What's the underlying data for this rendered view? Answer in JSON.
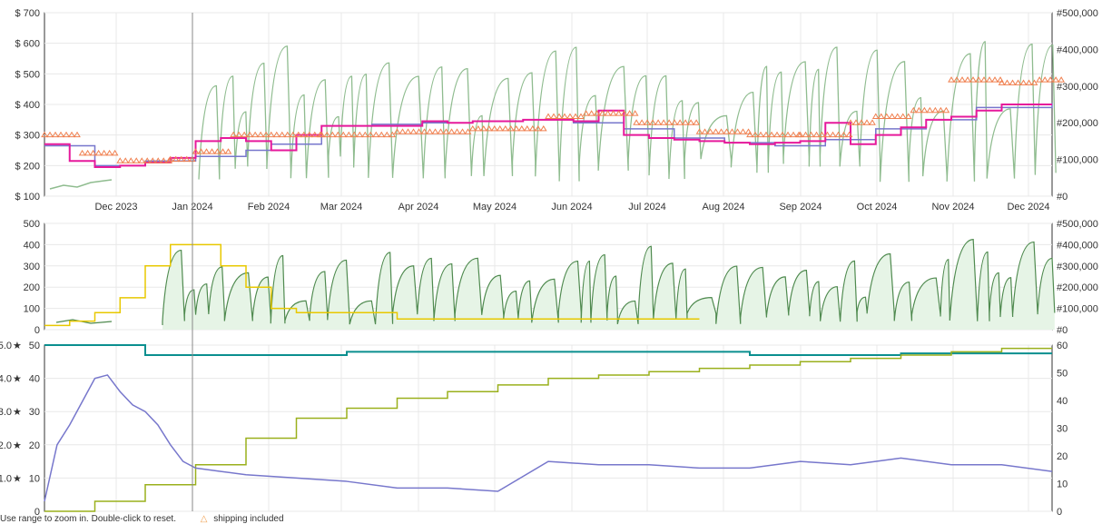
{
  "colors": {
    "amazon": "#8fbc8f",
    "new": "#e6199b",
    "used": "#7777cc",
    "shipping": "#f08050",
    "rank": "#4f8a4f",
    "offers_new": "#e8c800",
    "rating": "#0a8f8f",
    "reviews": "#9ab01c",
    "offer_count": "#7777cc"
  },
  "footer": {
    "hint": "Use range to zoom in. Double-click to reset.",
    "legend_shipping": "shipping included"
  },
  "chart_data": [
    {
      "type": "line",
      "panel": "price",
      "x_ticks": [
        "Dec 2023",
        "Jan 2024",
        "Feb 2024",
        "Mar 2024",
        "Apr 2024",
        "May 2024",
        "Jun 2024",
        "Jul 2024",
        "Aug 2024",
        "Sep 2024",
        "Oct 2024",
        "Nov 2024",
        "Dec 2024"
      ],
      "y_ticks_left": [
        "$ 100",
        "$ 200",
        "$ 300",
        "$ 400",
        "$ 500",
        "$ 600",
        "$ 700"
      ],
      "y_ticks_right": [
        "#0",
        "#100,000",
        "#200,000",
        "#300,000",
        "#400,000",
        "#500,000"
      ],
      "ylim_left": [
        100,
        700
      ],
      "ylim_right": [
        0,
        500000
      ],
      "grid": true,
      "series": [
        {
          "key": "new",
          "x": [
            0,
            10,
            20,
            30,
            40,
            50,
            60,
            70,
            80,
            90,
            100,
            110,
            120,
            130,
            140,
            150,
            160,
            170,
            180,
            190,
            200,
            210,
            220,
            230,
            240,
            250,
            260,
            270,
            280,
            290,
            300,
            310,
            320,
            330,
            340,
            350,
            360,
            370,
            380,
            390,
            400
          ],
          "values": [
            270,
            215,
            195,
            200,
            210,
            225,
            280,
            290,
            280,
            250,
            300,
            330,
            330,
            330,
            330,
            345,
            340,
            345,
            345,
            350,
            350,
            345,
            380,
            300,
            290,
            285,
            280,
            275,
            270,
            275,
            280,
            340,
            270,
            300,
            325,
            350,
            360,
            380,
            400,
            400,
            400
          ]
        },
        {
          "key": "used",
          "x": [
            0,
            20,
            40,
            60,
            80,
            90,
            110,
            130,
            150,
            170,
            190,
            210,
            230,
            250,
            270,
            290,
            310,
            330,
            350,
            370,
            400
          ],
          "values": [
            265,
            200,
            215,
            230,
            250,
            270,
            330,
            335,
            340,
            345,
            350,
            340,
            320,
            290,
            275,
            265,
            285,
            320,
            350,
            390,
            405
          ]
        },
        {
          "key": "shipping",
          "x": [
            0,
            15,
            30,
            50,
            60,
            75,
            90,
            110,
            140,
            170,
            200,
            215,
            235,
            260,
            280,
            300,
            320,
            330,
            345,
            360,
            380,
            395,
            405
          ],
          "values": [
            300,
            240,
            215,
            220,
            245,
            300,
            300,
            300,
            310,
            320,
            360,
            370,
            340,
            310,
            300,
            300,
            340,
            360,
            380,
            480,
            470,
            480,
            480
          ]
        }
      ]
    },
    {
      "type": "line",
      "panel": "sales_rank",
      "y_ticks_left": [
        "0",
        "100",
        "200",
        "300",
        "400",
        "500"
      ],
      "y_ticks_right": [
        "#0",
        "#100,000",
        "#200,000",
        "#300,000",
        "#400,000",
        "#500,000"
      ],
      "ylim_left": [
        0,
        500
      ],
      "ylim_right": [
        0,
        500000
      ],
      "series": [
        {
          "key": "offers_new",
          "x": [
            0,
            10,
            20,
            30,
            40,
            50,
            60,
            70,
            80,
            90,
            100,
            140,
            180,
            220,
            260
          ],
          "values": [
            20,
            40,
            80,
            150,
            300,
            400,
            400,
            300,
            200,
            100,
            80,
            50,
            50,
            50,
            50
          ]
        }
      ]
    },
    {
      "type": "line",
      "panel": "rating_reviews_offers",
      "y_ticks_left": [
        "0",
        "10",
        "20",
        "30",
        "40",
        "50"
      ],
      "y_ticks_rating": [
        "1.0",
        "2.0",
        "3.0",
        "4.0",
        "5.0"
      ],
      "y_ticks_right": [
        "0",
        "10",
        "20",
        "30",
        "40",
        "50",
        "60"
      ],
      "ylim_left": [
        0,
        50
      ],
      "ylim_right": [
        0,
        60
      ],
      "series": [
        {
          "key": "rating",
          "x": [
            0,
            40,
            60,
            120,
            240,
            280,
            340,
            400
          ],
          "values": [
            5.0,
            4.7,
            4.7,
            4.8,
            4.8,
            4.7,
            4.75,
            4.75
          ]
        },
        {
          "key": "reviews",
          "x": [
            0,
            20,
            40,
            60,
            80,
            100,
            120,
            140,
            160,
            180,
            200,
            220,
            240,
            260,
            280,
            300,
            320,
            340,
            360,
            380,
            400
          ],
          "values": [
            0,
            3,
            8,
            14,
            22,
            28,
            31,
            34,
            36,
            38,
            40,
            41,
            42,
            43,
            44,
            45,
            46,
            47,
            48,
            49,
            49
          ]
        },
        {
          "key": "offer_count",
          "x": [
            0,
            5,
            10,
            15,
            20,
            25,
            30,
            35,
            40,
            45,
            50,
            55,
            60,
            70,
            80,
            100,
            120,
            140,
            160,
            180,
            200,
            220,
            240,
            260,
            280,
            300,
            320,
            340,
            360,
            380,
            400
          ],
          "values": [
            3,
            20,
            26,
            33,
            40,
            41,
            36,
            32,
            30,
            26,
            20,
            15,
            13,
            12,
            11,
            10,
            9,
            7,
            7,
            6,
            15,
            14,
            14,
            13,
            13,
            15,
            14,
            16,
            14,
            14,
            12
          ]
        }
      ]
    }
  ]
}
